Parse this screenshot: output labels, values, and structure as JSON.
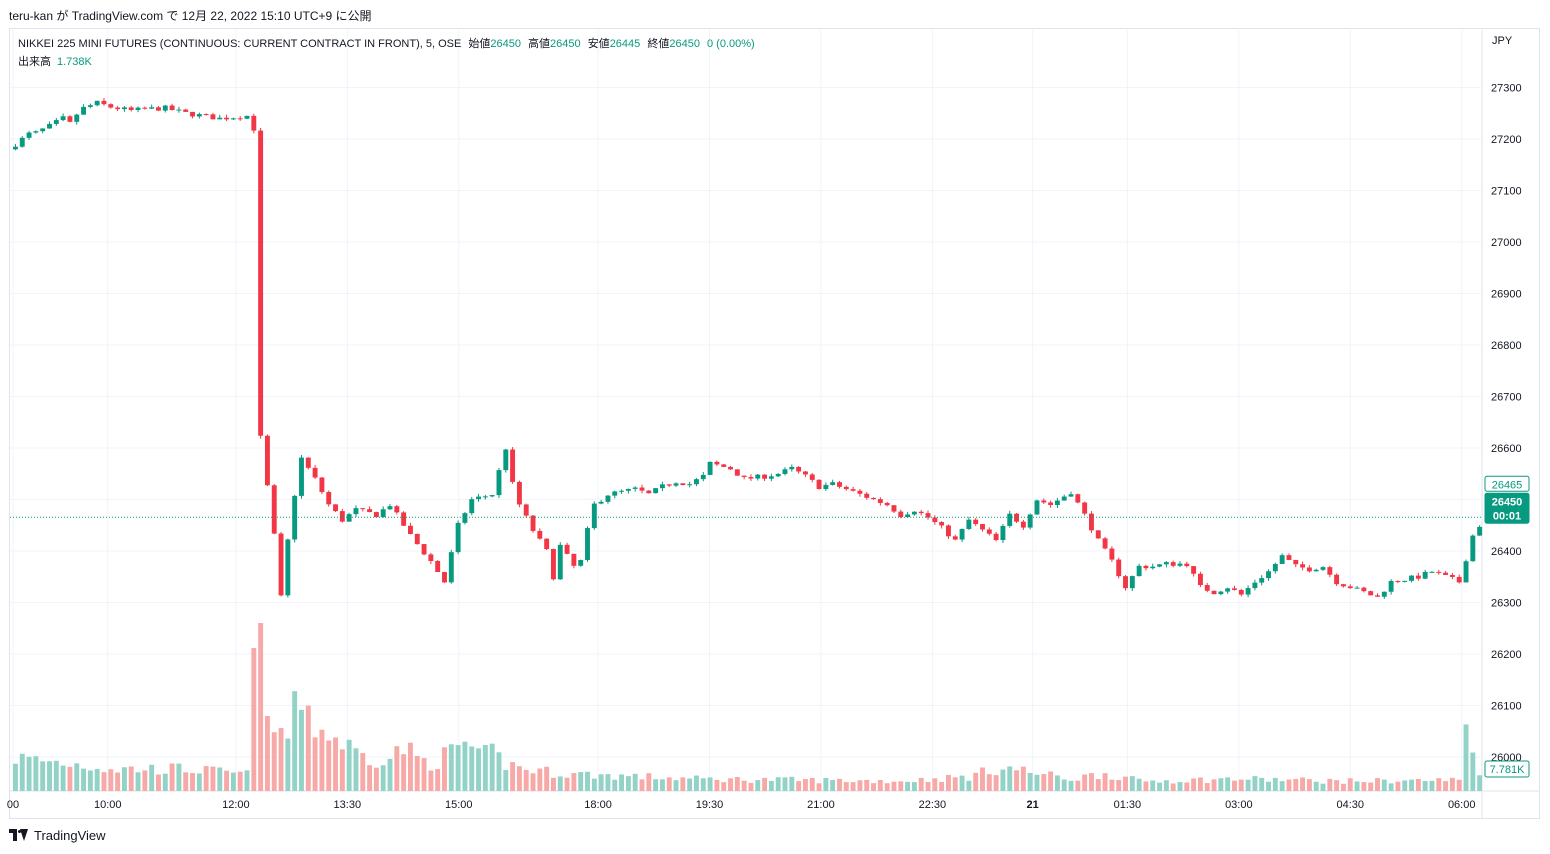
{
  "header": {
    "published_by": "teru-kan が TradingView.com で 12月 22, 2022 15:10 UTC+9 に公開"
  },
  "legend": {
    "symbol": "NIKKEI 225 MINI FUTURES (CONTINUOUS: CURRENT CONTRACT IN FRONT), 5, OSE",
    "open_label": "始値",
    "open_value": "26450",
    "high_label": "高値",
    "high_value": "26450",
    "low_label": "安値",
    "low_value": "26445",
    "close_label": "終値",
    "close_value": "26450",
    "change": "0 (0.00%)",
    "volume_label": "出来高",
    "volume_value": "1.738K"
  },
  "currency": "JPY",
  "footer": {
    "brand": "TradingView"
  },
  "colors": {
    "up": "#089981",
    "down": "#f23645",
    "up_volume": "#92d2c7",
    "down_volume": "#f7a9a7",
    "grid": "#f0f3fa"
  },
  "chart_data": {
    "type": "candlestick",
    "interval": "5",
    "y_ticks": [
      "27300",
      "27200",
      "27100",
      "27000",
      "26900",
      "26800",
      "26700",
      "26600",
      "26500",
      "26400",
      "26300",
      "26200",
      "26100",
      "26000"
    ],
    "x_ticks": [
      "00",
      "10:00",
      "12:00",
      "13:30",
      "15:00",
      "18:00",
      "19:30",
      "21:00",
      "22:30",
      "21",
      "01:30",
      "03:00",
      "04:30",
      "06:00"
    ],
    "ylim": [
      25935,
      27405
    ],
    "price_labels": {
      "last_price": "26450",
      "countdown": "00:01",
      "line_label": "26465",
      "volume_label": "7.781K"
    },
    "price_path": [
      [
        0,
        27190
      ],
      [
        2,
        27210
      ],
      [
        3,
        27212
      ],
      [
        5,
        27225
      ],
      [
        7,
        27240
      ],
      [
        8,
        27230
      ],
      [
        9,
        27248
      ],
      [
        10,
        27260
      ],
      [
        12,
        27270
      ],
      [
        14,
        27262
      ],
      [
        17,
        27255
      ],
      [
        19,
        27258
      ],
      [
        22,
        27260
      ],
      [
        25,
        27250
      ],
      [
        30,
        27240
      ],
      [
        34,
        27245
      ],
      [
        35,
        27220
      ],
      [
        36,
        26620
      ],
      [
        38,
        26430
      ],
      [
        39,
        26310
      ],
      [
        40,
        26420
      ],
      [
        41,
        26510
      ],
      [
        42,
        26580
      ],
      [
        44,
        26540
      ],
      [
        46,
        26490
      ],
      [
        48,
        26460
      ],
      [
        50,
        26480
      ],
      [
        53,
        26470
      ],
      [
        55,
        26490
      ],
      [
        58,
        26430
      ],
      [
        61,
        26380
      ],
      [
        63,
        26340
      ],
      [
        65,
        26450
      ],
      [
        67,
        26500
      ],
      [
        70,
        26510
      ],
      [
        72,
        26600
      ],
      [
        73,
        26530
      ],
      [
        74,
        26490
      ],
      [
        76,
        26440
      ],
      [
        78,
        26400
      ],
      [
        79,
        26350
      ],
      [
        80,
        26410
      ],
      [
        82,
        26370
      ],
      [
        83,
        26380
      ],
      [
        84,
        26440
      ],
      [
        85,
        26490
      ],
      [
        87,
        26510
      ],
      [
        89,
        26515
      ],
      [
        91,
        26520
      ],
      [
        93,
        26510
      ],
      [
        95,
        26525
      ],
      [
        97,
        26535
      ],
      [
        99,
        26530
      ],
      [
        101,
        26545
      ],
      [
        102,
        26570
      ],
      [
        105,
        26560
      ],
      [
        107,
        26540
      ],
      [
        110,
        26545
      ],
      [
        112,
        26550
      ],
      [
        114,
        26560
      ],
      [
        116,
        26545
      ],
      [
        118,
        26525
      ],
      [
        120,
        26530
      ],
      [
        122,
        26520
      ],
      [
        124,
        26510
      ],
      [
        126,
        26500
      ],
      [
        128,
        26490
      ],
      [
        130,
        26470
      ],
      [
        132,
        26480
      ],
      [
        134,
        26465
      ],
      [
        136,
        26445
      ],
      [
        138,
        26420
      ],
      [
        140,
        26460
      ],
      [
        142,
        26440
      ],
      [
        144,
        26420
      ],
      [
        146,
        26470
      ],
      [
        148,
        26450
      ],
      [
        150,
        26500
      ],
      [
        152,
        26490
      ],
      [
        155,
        26515
      ],
      [
        157,
        26470
      ],
      [
        159,
        26420
      ],
      [
        161,
        26380
      ],
      [
        163,
        26330
      ],
      [
        165,
        26370
      ],
      [
        167,
        26370
      ],
      [
        169,
        26375
      ],
      [
        172,
        26375
      ],
      [
        174,
        26330
      ],
      [
        176,
        26320
      ],
      [
        178,
        26330
      ],
      [
        180,
        26315
      ],
      [
        182,
        26340
      ],
      [
        184,
        26360
      ],
      [
        186,
        26390
      ],
      [
        188,
        26370
      ],
      [
        190,
        26365
      ],
      [
        192,
        26370
      ],
      [
        194,
        26340
      ],
      [
        196,
        26330
      ],
      [
        198,
        26320
      ],
      [
        200,
        26310
      ],
      [
        202,
        26340
      ],
      [
        204,
        26345
      ],
      [
        206,
        26350
      ],
      [
        208,
        26360
      ],
      [
        210,
        26350
      ],
      [
        212,
        26340
      ],
      [
        214,
        26430
      ],
      [
        215,
        26450
      ]
    ],
    "volume_path": [
      [
        0,
        3
      ],
      [
        8,
        2.5
      ],
      [
        15,
        2
      ],
      [
        25,
        2
      ],
      [
        34,
        1.5
      ],
      [
        35,
        18
      ],
      [
        36,
        12
      ],
      [
        37,
        6
      ],
      [
        40,
        5
      ],
      [
        42,
        9
      ],
      [
        44,
        6
      ],
      [
        46,
        5
      ],
      [
        48,
        4.5
      ],
      [
        50,
        3.5
      ],
      [
        52,
        3
      ],
      [
        55,
        3
      ],
      [
        57,
        4
      ],
      [
        59,
        3
      ],
      [
        61,
        2.5
      ],
      [
        64,
        3.5
      ],
      [
        66,
        4.5
      ],
      [
        68,
        3
      ],
      [
        70,
        3.5
      ],
      [
        72,
        2.5
      ],
      [
        75,
        2
      ],
      [
        80,
        1.6
      ],
      [
        100,
        1.1
      ],
      [
        130,
        0.9
      ],
      [
        140,
        1.3
      ],
      [
        145,
        2.2
      ],
      [
        150,
        1.6
      ],
      [
        155,
        1.1
      ],
      [
        160,
        1.6
      ],
      [
        165,
        0.9
      ],
      [
        180,
        1.1
      ],
      [
        195,
        0.9
      ],
      [
        212,
        1
      ],
      [
        213,
        6
      ],
      [
        214,
        3.5
      ],
      [
        215,
        2
      ]
    ]
  }
}
